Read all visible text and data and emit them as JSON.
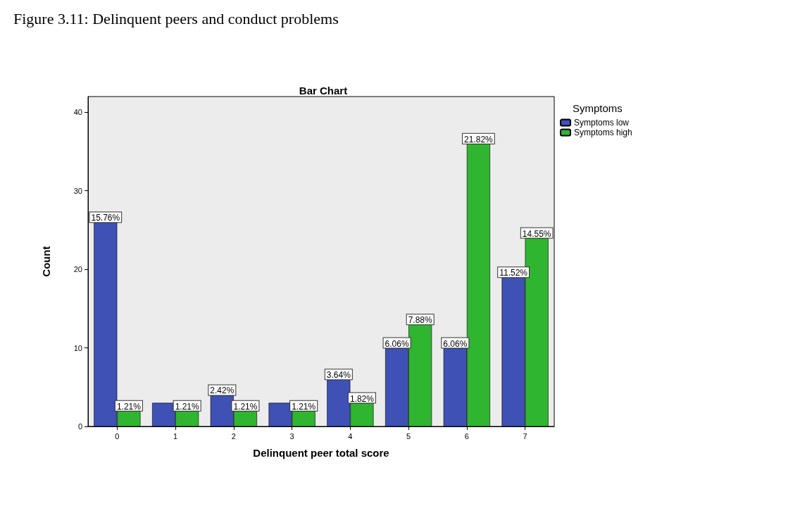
{
  "chart_data": {
    "type": "bar",
    "title": "Figure 3.11: Delinquent peers and conduct problems",
    "subtitle": "Bar Chart",
    "xlabel": "Delinquent peer total score",
    "ylabel": "Count",
    "legend_title": "Symptoms",
    "categories": [
      "0",
      "1",
      "2",
      "3",
      "4",
      "5",
      "6",
      "7"
    ],
    "series": [
      {
        "name": "Symptoms low",
        "color": "#3f51b5",
        "values": [
          26,
          3,
          4,
          3,
          6,
          10,
          10,
          19
        ]
      },
      {
        "name": "Symptoms high",
        "color": "#2fb52f",
        "values": [
          2,
          2,
          2,
          2,
          3,
          13,
          36,
          24
        ]
      }
    ],
    "annotations": [
      {
        "text": "15.76%",
        "x": "0",
        "y": 26
      },
      {
        "text": "1.21%",
        "x": "0",
        "y": 2
      },
      {
        "text": "1.21%",
        "x": "1",
        "y": 2
      },
      {
        "text": "2.42%",
        "x": "2",
        "y": 4
      },
      {
        "text": "1.21%",
        "x": "2",
        "y": 2
      },
      {
        "text": "1.21%",
        "x": "3",
        "y": 2
      },
      {
        "text": "3.64%",
        "x": "4",
        "y": 6
      },
      {
        "text": "1.82%",
        "x": "4",
        "y": 3
      },
      {
        "text": "6.06%",
        "x": "5",
        "y": 10
      },
      {
        "text": "7.88%",
        "x": "5",
        "y": 13
      },
      {
        "text": "6.06%",
        "x": "6",
        "y": 10
      },
      {
        "text": "21.82%",
        "x": "6",
        "y": 36
      },
      {
        "text": "11.52%",
        "x": "7",
        "y": 19
      },
      {
        "text": "14.55%",
        "x": "7",
        "y": 24
      }
    ],
    "ylim": [
      0,
      42
    ],
    "yticks": [
      0,
      10,
      20,
      30,
      40
    ],
    "grid": false,
    "legend": "top right"
  }
}
